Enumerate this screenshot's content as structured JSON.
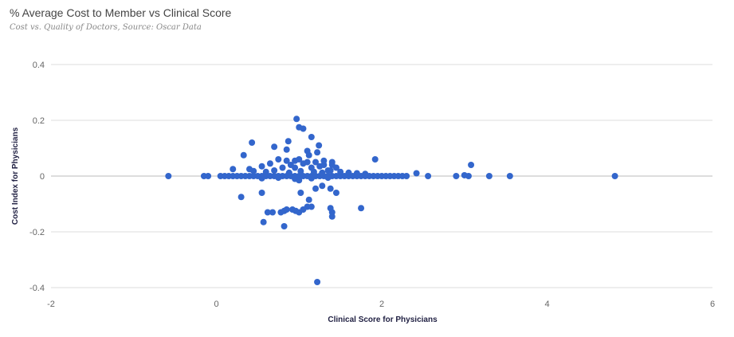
{
  "chart_data": {
    "type": "scatter",
    "title": "% Average Cost to Member vs Clinical Score",
    "subtitle": "Cost vs. Quality of Doctors, Source: Oscar Data",
    "xlabel": "Clinical Score for Physicians",
    "ylabel": "Cost Index for Physicians",
    "xlim": [
      -2,
      6
    ],
    "ylim": [
      -0.4,
      0.4
    ],
    "xticks": [
      -2,
      0,
      2,
      4,
      6
    ],
    "yticks": [
      -0.4,
      -0.2,
      0,
      0.2,
      0.4
    ],
    "grid": true,
    "color": "#3366cc",
    "points": [
      [
        -0.58,
        0
      ],
      [
        -0.15,
        0
      ],
      [
        -0.1,
        0
      ],
      [
        0.05,
        0
      ],
      [
        0.1,
        0
      ],
      [
        0.15,
        0
      ],
      [
        0.2,
        0
      ],
      [
        0.25,
        0
      ],
      [
        0.3,
        0
      ],
      [
        0.35,
        0
      ],
      [
        0.4,
        0
      ],
      [
        0.45,
        0
      ],
      [
        0.5,
        0
      ],
      [
        0.55,
        0
      ],
      [
        0.6,
        0
      ],
      [
        0.65,
        0
      ],
      [
        0.7,
        0
      ],
      [
        0.75,
        0
      ],
      [
        0.8,
        0
      ],
      [
        0.85,
        0
      ],
      [
        0.9,
        0
      ],
      [
        0.95,
        0
      ],
      [
        1.0,
        0
      ],
      [
        1.05,
        0
      ],
      [
        1.1,
        0
      ],
      [
        1.15,
        0
      ],
      [
        1.2,
        0
      ],
      [
        1.25,
        0
      ],
      [
        1.3,
        0
      ],
      [
        1.35,
        0
      ],
      [
        1.4,
        0
      ],
      [
        1.45,
        0
      ],
      [
        1.5,
        0
      ],
      [
        1.55,
        0
      ],
      [
        1.6,
        0
      ],
      [
        1.65,
        0
      ],
      [
        1.7,
        0
      ],
      [
        1.75,
        0
      ],
      [
        1.8,
        0
      ],
      [
        1.85,
        0
      ],
      [
        1.9,
        0
      ],
      [
        1.95,
        0
      ],
      [
        2.0,
        0
      ],
      [
        2.05,
        0
      ],
      [
        2.1,
        0
      ],
      [
        2.15,
        0
      ],
      [
        2.2,
        0
      ],
      [
        2.25,
        0
      ],
      [
        2.3,
        0
      ],
      [
        2.56,
        0
      ],
      [
        2.9,
        0
      ],
      [
        3.05,
        0
      ],
      [
        3.3,
        0
      ],
      [
        3.55,
        0
      ],
      [
        4.82,
        0
      ],
      [
        0.2,
        0.025
      ],
      [
        0.4,
        0.025
      ],
      [
        0.45,
        0.018
      ],
      [
        0.55,
        0.035
      ],
      [
        0.65,
        0.045
      ],
      [
        0.75,
        0.06
      ],
      [
        0.8,
        0.03
      ],
      [
        0.85,
        0.055
      ],
      [
        0.9,
        0.04
      ],
      [
        0.95,
        0.03
      ],
      [
        1.0,
        0.06
      ],
      [
        1.05,
        0.045
      ],
      [
        1.1,
        0.05
      ],
      [
        1.15,
        0.03
      ],
      [
        1.2,
        0.05
      ],
      [
        1.25,
        0.035
      ],
      [
        1.3,
        0.04
      ],
      [
        1.35,
        0.02
      ],
      [
        1.4,
        0.05
      ],
      [
        1.45,
        0.03
      ],
      [
        1.5,
        0.015
      ],
      [
        1.6,
        0.012
      ],
      [
        1.7,
        0.01
      ],
      [
        1.8,
        0.008
      ],
      [
        2.42,
        0.01
      ],
      [
        3.0,
        0.003
      ],
      [
        0.6,
        0.015
      ],
      [
        0.7,
        0.02
      ],
      [
        0.88,
        0.012
      ],
      [
        1.02,
        0.018
      ],
      [
        1.18,
        0.015
      ],
      [
        1.28,
        0.012
      ],
      [
        1.38,
        0.02
      ],
      [
        0.55,
        -0.008
      ],
      [
        0.75,
        -0.006
      ],
      [
        0.95,
        -0.01
      ],
      [
        1.15,
        -0.008
      ],
      [
        1.35,
        -0.006
      ],
      [
        0.33,
        0.075
      ],
      [
        0.43,
        0.12
      ],
      [
        0.7,
        0.105
      ],
      [
        0.85,
        0.095
      ],
      [
        0.87,
        0.125
      ],
      [
        0.95,
        0.055
      ],
      [
        0.97,
        0.205
      ],
      [
        1.0,
        0.175
      ],
      [
        1.05,
        0.17
      ],
      [
        1.1,
        0.09
      ],
      [
        1.12,
        0.075
      ],
      [
        1.15,
        0.14
      ],
      [
        1.22,
        0.085
      ],
      [
        1.24,
        0.11
      ],
      [
        1.3,
        0.055
      ],
      [
        1.4,
        0.04
      ],
      [
        1.92,
        0.06
      ],
      [
        3.08,
        0.04
      ],
      [
        0.3,
        -0.075
      ],
      [
        0.55,
        -0.06
      ],
      [
        0.62,
        -0.13
      ],
      [
        0.68,
        -0.13
      ],
      [
        0.78,
        -0.13
      ],
      [
        0.82,
        -0.125
      ],
      [
        0.85,
        -0.12
      ],
      [
        0.92,
        -0.12
      ],
      [
        0.96,
        -0.125
      ],
      [
        1.0,
        -0.13
      ],
      [
        1.05,
        -0.12
      ],
      [
        1.1,
        -0.11
      ],
      [
        1.15,
        -0.11
      ],
      [
        1.12,
        -0.085
      ],
      [
        1.2,
        -0.045
      ],
      [
        1.28,
        -0.035
      ],
      [
        1.38,
        -0.045
      ],
      [
        1.45,
        -0.06
      ],
      [
        1.38,
        -0.115
      ],
      [
        1.4,
        -0.13
      ],
      [
        1.4,
        -0.145
      ],
      [
        1.75,
        -0.115
      ],
      [
        0.57,
        -0.165
      ],
      [
        0.82,
        -0.18
      ],
      [
        1.02,
        -0.06
      ],
      [
        1.0,
        -0.015
      ],
      [
        1.22,
        -0.38
      ]
    ]
  }
}
